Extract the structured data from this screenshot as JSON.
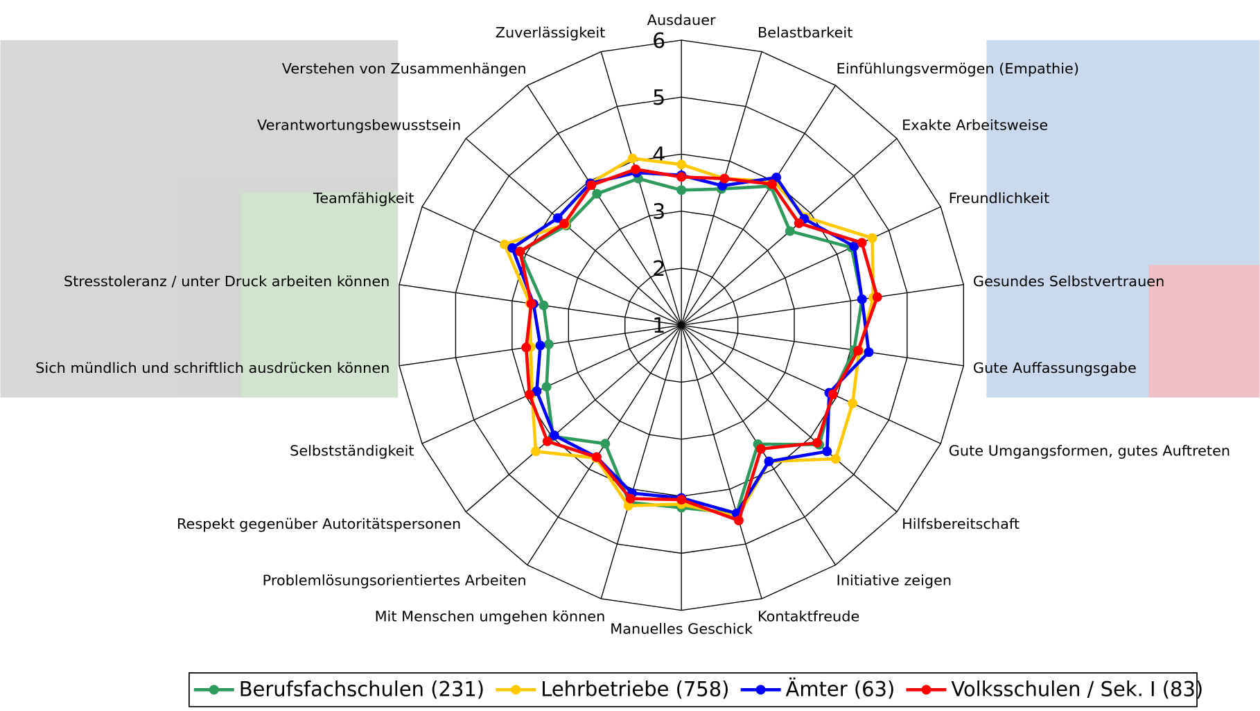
{
  "chart_data": {
    "type": "radar",
    "categories": [
      "Ausdauer",
      "Belastbarkeit",
      "Einfühlungsvermögen (Empathie)",
      "Exakte Arbeitsweise",
      "Freundlichkeit",
      "Gesundes Selbstvertrauen",
      "Gute Auffassungsgabe",
      "Gute Umgangsformen, gutes Auftreten",
      "Hilfsbereitschaft",
      "Initiative zeigen",
      "Kontaktfreude",
      "Manuelles Geschick",
      "Mit Menschen umgehen können",
      "Problemlösungsorientiertes Arbeiten",
      "Respekt gegenüber Autoritätspersonen",
      "Selbstständigkeit",
      "Sich mündlich und schriftlich ausdrücken können",
      "Stresstoleranz / unter Druck arbeiten können",
      "Teamfähigkeit",
      "Verantwortungsbewusstsein",
      "Verstehen von Zusammenhängen",
      "Zuverlässigkeit"
    ],
    "series": [
      {
        "name": "Berufsfachschulen (231)",
        "color": "#2e9a5e",
        "values": [
          3.37,
          3.49,
          3.9,
          3.52,
          4.28,
          4.2,
          4.06,
          3.92,
          4.2,
          3.48,
          4.44,
          4.2,
          4.24,
          3.47,
          3.98,
          3.6,
          3.35,
          3.44,
          4.11,
          3.67,
          3.74,
          3.68
        ]
      },
      {
        "name": "Lehrbetriebe (758)",
        "color": "#ffc800",
        "values": [
          3.82,
          3.68,
          4.0,
          3.89,
          4.68,
          4.4,
          4.15,
          4.3,
          4.58,
          3.84,
          4.5,
          4.14,
          4.3,
          3.77,
          4.38,
          3.88,
          3.67,
          3.68,
          4.41,
          3.7,
          3.96,
          4.05
        ]
      },
      {
        "name": "Ämter (63)",
        "color": "#0000ff",
        "values": [
          3.63,
          3.55,
          4.08,
          3.85,
          4.33,
          4.2,
          4.32,
          3.85,
          4.38,
          3.84,
          4.44,
          4.03,
          4.07,
          3.75,
          3.95,
          3.79,
          3.5,
          3.62,
          4.26,
          3.87,
          3.96,
          3.79
        ]
      },
      {
        "name": "Volksschulen / Sek. I (83)",
        "color": "#ff0000",
        "values": [
          3.6,
          3.68,
          3.94,
          3.73,
          4.48,
          4.47,
          4.13,
          3.92,
          4.15,
          3.58,
          4.57,
          4.06,
          4.17,
          3.75,
          4.11,
          3.93,
          3.75,
          3.66,
          4.11,
          3.72,
          3.92,
          3.85
        ]
      }
    ],
    "rlim": [
      1,
      6
    ],
    "rticks": [
      1,
      2,
      3,
      4,
      5,
      6
    ],
    "legend": "bottom"
  }
}
